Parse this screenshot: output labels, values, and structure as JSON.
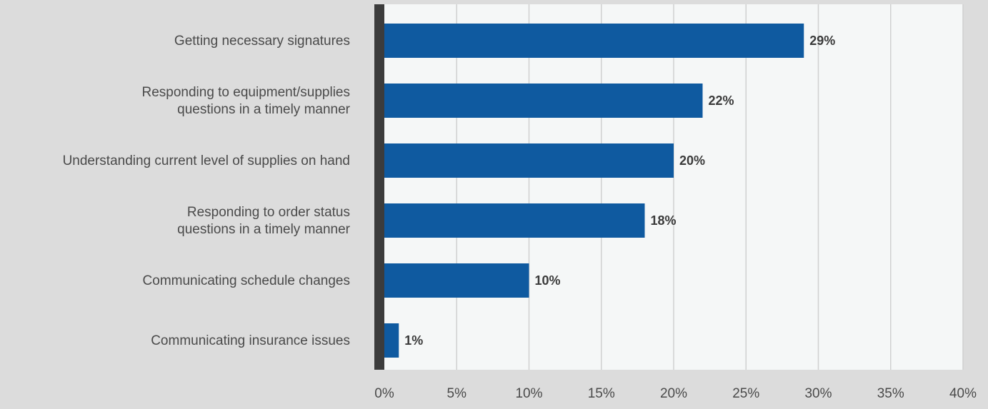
{
  "colors": {
    "page_background": "#dcdcdc",
    "plot_background": "#f5f7f7",
    "bar": "#0f5aa0",
    "gridline": "#d0d0d0",
    "axis_line": "#3c3c3c"
  },
  "chart_data": {
    "type": "bar",
    "orientation": "horizontal",
    "categories": [
      [
        "Getting necessary signatures"
      ],
      [
        "Responding to equipment/supplies",
        "questions in a timely manner"
      ],
      [
        "Understanding current level of supplies on hand"
      ],
      [
        "Responding to order status",
        "questions in a timely manner"
      ],
      [
        "Communicating schedule changes"
      ],
      [
        "Communicating insurance issues"
      ]
    ],
    "values": [
      29,
      22,
      20,
      18,
      10,
      1
    ],
    "value_labels": [
      "29%",
      "22%",
      "20%",
      "18%",
      "10%",
      "1%"
    ],
    "xlim": [
      0,
      40
    ],
    "xticks": [
      0,
      5,
      10,
      15,
      20,
      25,
      30,
      35,
      40
    ],
    "xtick_labels": [
      "0%",
      "5%",
      "10%",
      "15%",
      "20%",
      "25%",
      "30%",
      "35%",
      "40%"
    ],
    "grid": true,
    "legend": false,
    "title": "",
    "xlabel": "",
    "ylabel": ""
  }
}
